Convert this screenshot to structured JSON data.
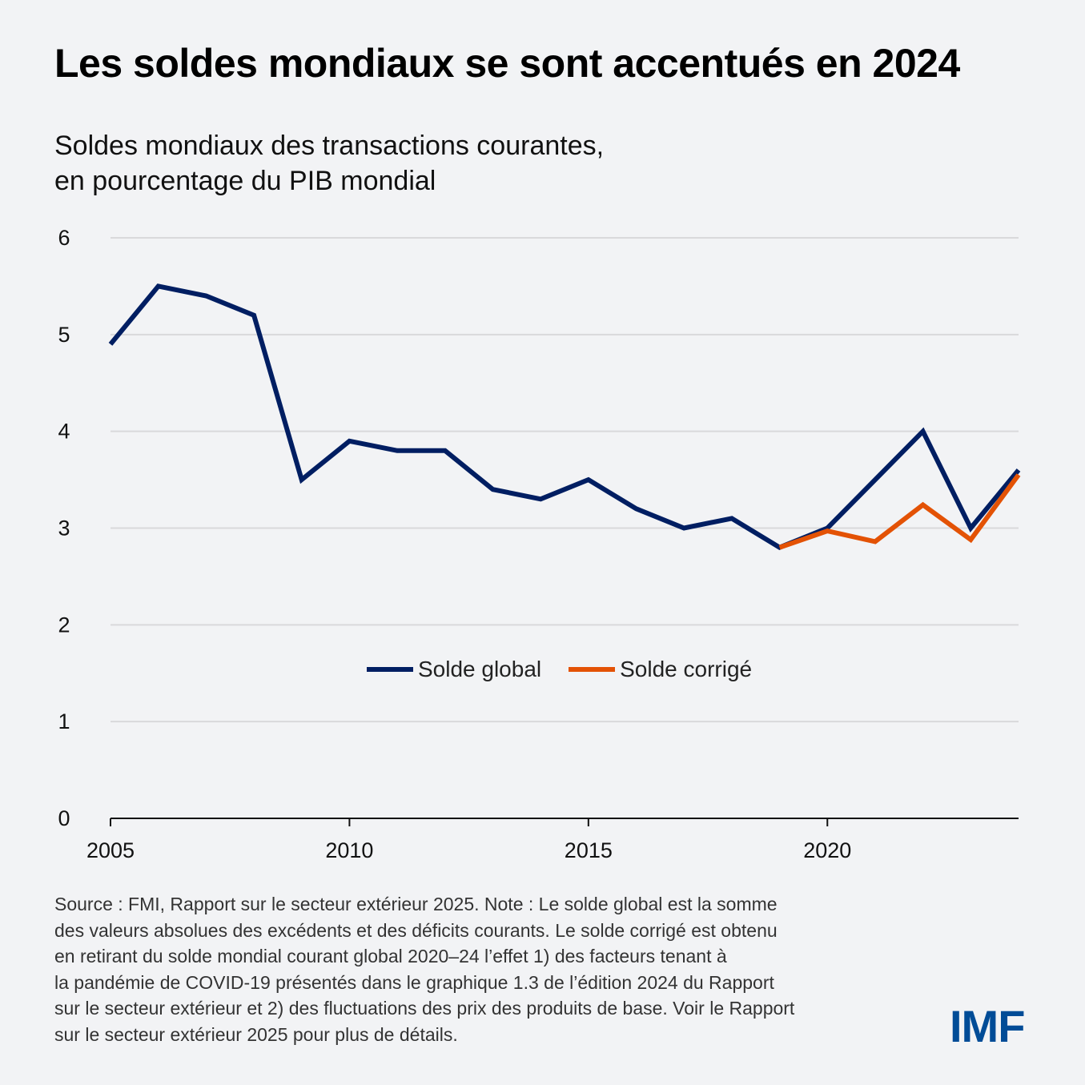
{
  "header": {
    "title": "Les soldes mondiaux se sont accentués en 2024",
    "subtitle_lines": [
      "Soldes mondiaux des transactions courantes,",
      "en pourcentage du PIB mondial"
    ]
  },
  "chart_data": {
    "type": "line",
    "title": "Les soldes mondiaux se sont accentués en 2024",
    "subtitle": "Soldes mondiaux des transactions courantes, en pourcentage du PIB mondial",
    "xlabel": "",
    "ylabel": "",
    "x": [
      2005,
      2006,
      2007,
      2008,
      2009,
      2010,
      2011,
      2012,
      2013,
      2014,
      2015,
      2016,
      2017,
      2018,
      2019,
      2020,
      2021,
      2022,
      2023,
      2024
    ],
    "xlim": [
      2005,
      2024
    ],
    "ylim": [
      0,
      6
    ],
    "xticks": [
      2005,
      2010,
      2015,
      2020
    ],
    "yticks": [
      0,
      1,
      2,
      3,
      4,
      5,
      6
    ],
    "grid": "horizontal",
    "legend_position": "center",
    "series": [
      {
        "name": "Solde global",
        "color": "#001e62",
        "x": [
          2005,
          2006,
          2007,
          2008,
          2009,
          2010,
          2011,
          2012,
          2013,
          2014,
          2015,
          2016,
          2017,
          2018,
          2019,
          2020,
          2021,
          2022,
          2023,
          2024
        ],
        "values": [
          4.9,
          5.5,
          5.4,
          5.2,
          3.5,
          3.9,
          3.8,
          3.8,
          3.4,
          3.3,
          3.5,
          3.2,
          3.0,
          3.1,
          2.8,
          3.0,
          3.5,
          4.0,
          3.0,
          3.6
        ]
      },
      {
        "name": "Solde corrigé",
        "color": "#e35205",
        "x": [
          2019,
          2020,
          2021,
          2022,
          2023,
          2024
        ],
        "values": [
          2.8,
          2.97,
          2.86,
          3.24,
          2.88,
          3.55
        ]
      }
    ]
  },
  "legend": [
    {
      "label": "Solde global",
      "color": "#001e62"
    },
    {
      "label": "Solde corrigé",
      "color": "#e35205"
    }
  ],
  "footer": {
    "note_lines": [
      "Source : FMI, Rapport sur le secteur extérieur 2025. Note : Le solde global est la somme",
      "des valeurs absolues des excédents et des déficits courants. Le solde corrigé est obtenu",
      "en retirant du solde mondial courant global 2020–24 l’effet 1) des facteurs tenant à",
      "la pandémie de COVID-19 présentés dans le graphique 1.3 de l’édition 2024 du Rapport",
      "sur le secteur extérieur et 2) des fluctuations des prix des produits de base. Voir le Rapport",
      "sur le secteur extérieur 2025 pour plus de détails."
    ],
    "logo": "IMF",
    "logo_color": "#004c97"
  }
}
